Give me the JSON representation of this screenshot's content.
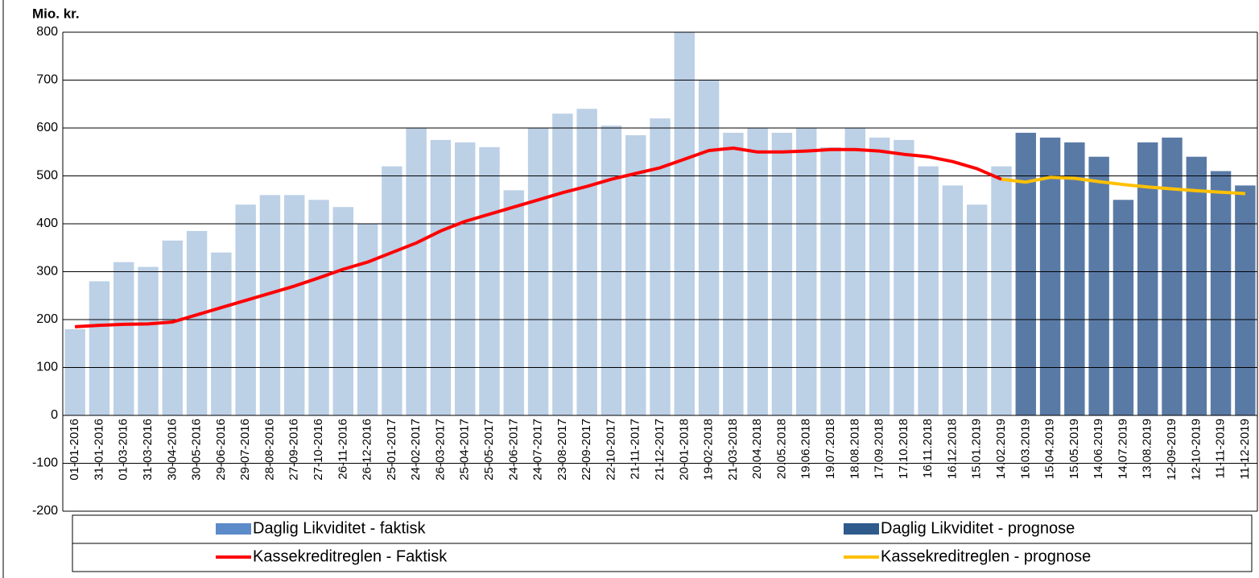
{
  "chart_data": {
    "type": "bar",
    "y_label": "Mio. kr.",
    "categories": [
      "01-01-2016",
      "31-01-2016",
      "01-03-2016",
      "31-03-2016",
      "30-04-2016",
      "30-05-2016",
      "29-06-2016",
      "29-07-2016",
      "28-08-2016",
      "27-09-2016",
      "27-10-2016",
      "26-11-2016",
      "26-12-2016",
      "25-01-2017",
      "24-02-2017",
      "26-03-2017",
      "25-04-2017",
      "25-05-2017",
      "24-06-2017",
      "24-07-2017",
      "23-08-2017",
      "22-09-2017",
      "22-10-2017",
      "21-11-2017",
      "21-12-2017",
      "20-01-2018",
      "19-02-2018",
      "21-03-2018",
      "20.04.2018",
      "20.05.2018",
      "19.06.2018",
      "19.07.2018",
      "18.08.2018",
      "17.09.2018",
      "17.10.2018",
      "16.11.2018",
      "16.12.2018",
      "15.01.2019",
      "14.02.2019",
      "16.03.2019",
      "15.04.2019",
      "15.05.2019",
      "14.06.2019",
      "14.07.2019",
      "13.08.2019",
      "12-09-2019",
      "12-10-2019",
      "11-11-2019",
      "11-12-2019"
    ],
    "series": [
      {
        "name": "Daglig Likviditet - faktisk",
        "type": "bar",
        "color": "#bcd0e6",
        "legend_color": "#5b8bc9",
        "values": [
          180,
          280,
          320,
          310,
          365,
          385,
          340,
          440,
          460,
          460,
          450,
          435,
          400,
          520,
          600,
          575,
          570,
          560,
          470,
          600,
          630,
          640,
          605,
          585,
          620,
          800,
          700,
          590,
          600,
          590,
          600,
          560,
          600,
          580,
          575,
          520,
          480,
          440,
          520,
          null,
          null,
          null,
          null,
          null,
          null,
          null,
          null,
          null,
          null
        ]
      },
      {
        "name": "Daglig Likviditet - prognose",
        "type": "bar",
        "color": "#5a7aa6",
        "legend_color": "#2e5a8c",
        "values": [
          null,
          null,
          null,
          null,
          null,
          null,
          null,
          null,
          null,
          null,
          null,
          null,
          null,
          null,
          null,
          null,
          null,
          null,
          null,
          null,
          null,
          null,
          null,
          null,
          null,
          null,
          null,
          null,
          null,
          null,
          null,
          null,
          null,
          null,
          null,
          null,
          null,
          null,
          null,
          590,
          580,
          570,
          540,
          450,
          570,
          580,
          540,
          510,
          480
        ]
      },
      {
        "name": "Kassekreditreglen - Faktisk",
        "type": "line",
        "color": "#ff0000",
        "values": [
          185,
          188,
          190,
          191,
          195,
          210,
          225,
          240,
          255,
          270,
          287,
          305,
          320,
          340,
          360,
          385,
          405,
          420,
          435,
          450,
          465,
          478,
          493,
          505,
          517,
          535,
          553,
          558,
          550,
          550,
          552,
          555,
          555,
          552,
          545,
          540,
          530,
          515,
          493,
          null,
          null,
          null,
          null,
          null,
          null,
          null,
          null,
          null,
          null
        ]
      },
      {
        "name": "Kassekreditreglen - prognose",
        "type": "line",
        "color": "#ffc000",
        "values": [
          null,
          null,
          null,
          null,
          null,
          null,
          null,
          null,
          null,
          null,
          null,
          null,
          null,
          null,
          null,
          null,
          null,
          null,
          null,
          null,
          null,
          null,
          null,
          null,
          null,
          null,
          null,
          null,
          null,
          null,
          null,
          null,
          null,
          null,
          null,
          null,
          null,
          null,
          493,
          487,
          497,
          495,
          488,
          482,
          477,
          473,
          469,
          466,
          463
        ]
      }
    ],
    "ylim": [
      -200,
      800
    ],
    "yticks": [
      -200,
      -100,
      0,
      100,
      200,
      300,
      400,
      500,
      600,
      700,
      800
    ],
    "grid": true
  }
}
